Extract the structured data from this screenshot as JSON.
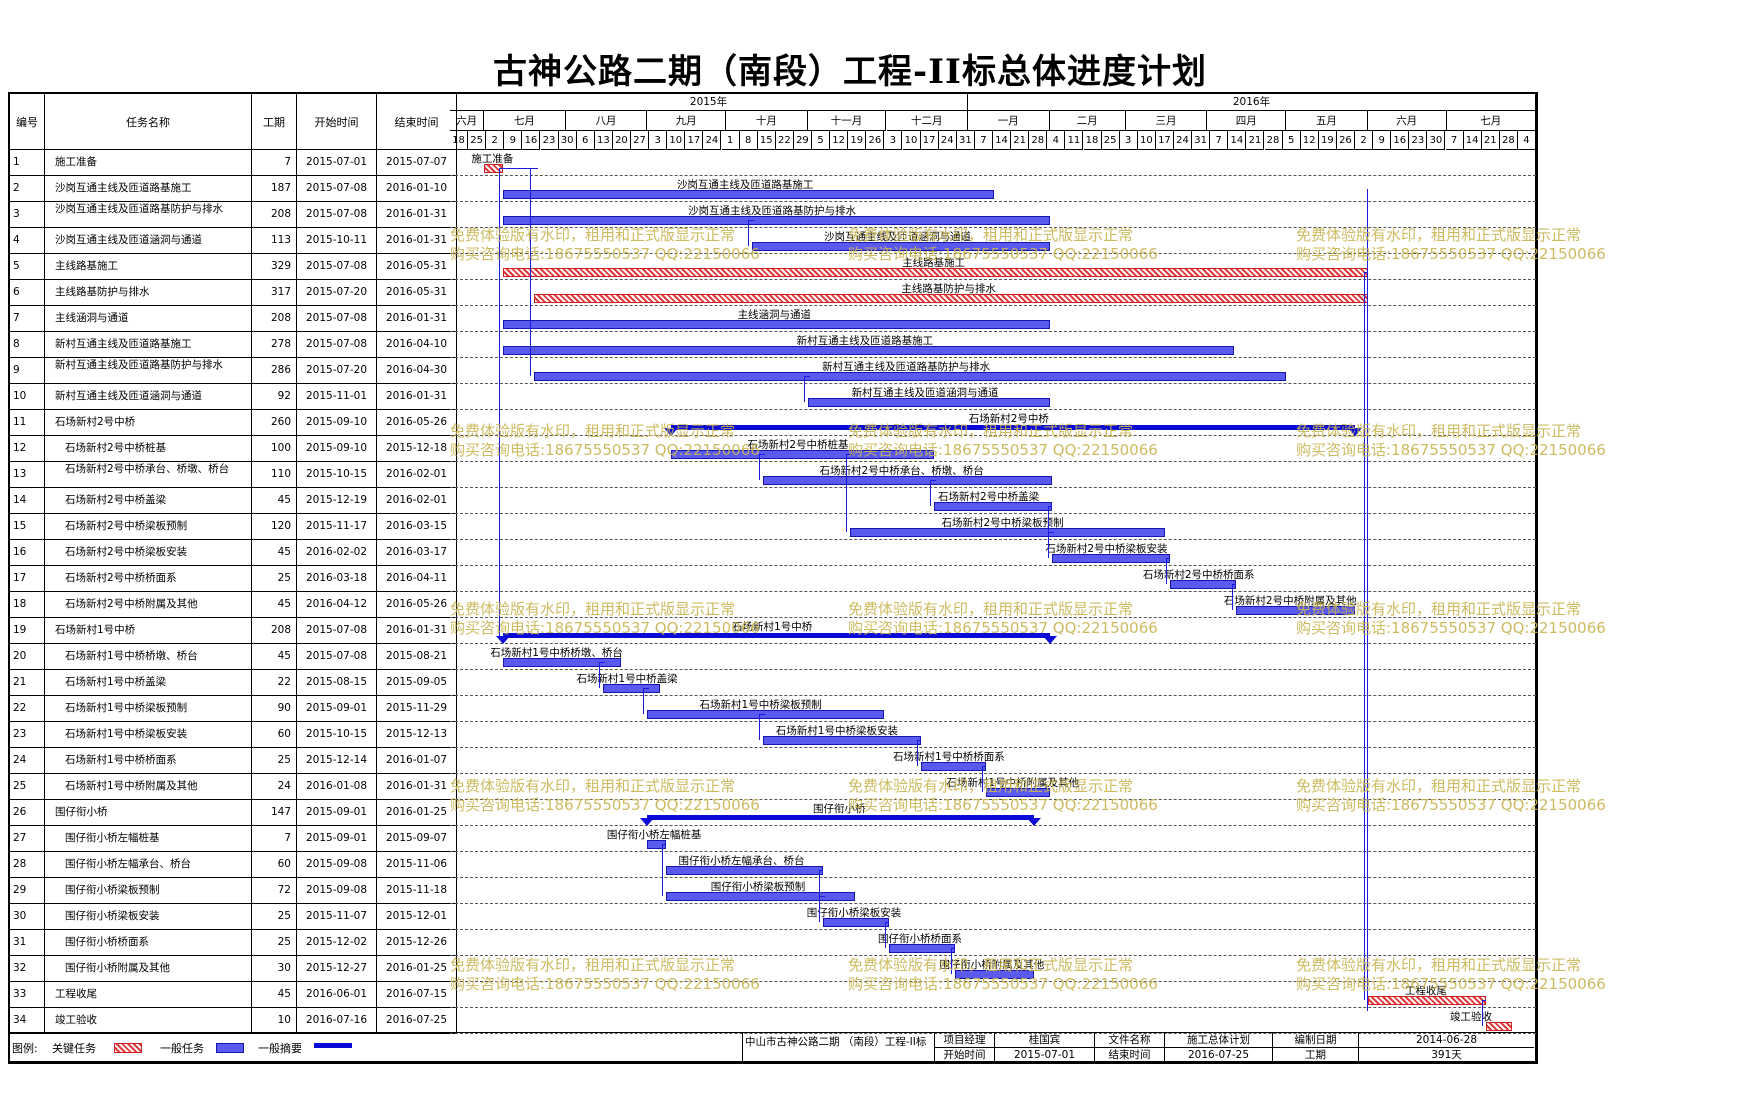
{
  "title": "古神公路二期（南段）工程-II标总体进度计划",
  "headers": {
    "id": "编号",
    "name": "任务名称",
    "dur": "工期",
    "start": "开始时间",
    "end": "结束时间"
  },
  "years": [
    {
      "label": "2015年"
    },
    {
      "label": "2016年"
    }
  ],
  "months": [
    "六月",
    "七月",
    "八月",
    "九月",
    "十月",
    "十一月",
    "十二月",
    "一月",
    "二月",
    "三月",
    "四月",
    "五月",
    "六月",
    "七月"
  ],
  "weeks": [
    "18",
    "25",
    "2",
    "9",
    "16",
    "23",
    "30",
    "6",
    "13",
    "20",
    "27",
    "3",
    "10",
    "17",
    "24",
    "1",
    "8",
    "15",
    "22",
    "29",
    "5",
    "12",
    "19",
    "26",
    "3",
    "10",
    "17",
    "24",
    "31",
    "7",
    "14",
    "21",
    "28",
    "4",
    "11",
    "18",
    "25",
    "3",
    "10",
    "17",
    "24",
    "31",
    "7",
    "14",
    "21",
    "28",
    "5",
    "12",
    "19",
    "26",
    "2",
    "9",
    "16",
    "23",
    "30",
    "7",
    "14",
    "21",
    "28",
    "4"
  ],
  "tasks": [
    {
      "id": "1",
      "name": "施工准备",
      "dur": "7",
      "start": "2015-07-01",
      "end": "2015-07-07",
      "type": "critical",
      "label": "施工准备"
    },
    {
      "id": "2",
      "name": "沙岗互通主线及匝道路基施工",
      "dur": "187",
      "start": "2015-07-08",
      "end": "2016-01-10",
      "type": "normal",
      "label": "沙岗互通主线及匝道路基施工"
    },
    {
      "id": "3",
      "name": "沙岗互通主线及匝道路基防护与排水",
      "dur": "208",
      "start": "2015-07-08",
      "end": "2016-01-31",
      "type": "normal",
      "label": "沙岗互通主线及匝道路基防护与排水"
    },
    {
      "id": "4",
      "name": "沙岗互通主线及匝道涵洞与通道",
      "dur": "113",
      "start": "2015-10-11",
      "end": "2016-01-31",
      "type": "normal",
      "label": "沙岗互通主线及匝道涵洞与通道"
    },
    {
      "id": "5",
      "name": "主线路基施工",
      "dur": "329",
      "start": "2015-07-08",
      "end": "2016-05-31",
      "type": "critical",
      "label": "主线路基施工"
    },
    {
      "id": "6",
      "name": "主线路基防护与排水",
      "dur": "317",
      "start": "2015-07-20",
      "end": "2016-05-31",
      "type": "critical",
      "label": "主线路基防护与排水"
    },
    {
      "id": "7",
      "name": "主线涵洞与通道",
      "dur": "208",
      "start": "2015-07-08",
      "end": "2016-01-31",
      "type": "normal",
      "label": "主线涵洞与通道"
    },
    {
      "id": "8",
      "name": "新村互通主线及匝道路基施工",
      "dur": "278",
      "start": "2015-07-08",
      "end": "2016-04-10",
      "type": "normal",
      "label": "新村互通主线及匝道路基施工"
    },
    {
      "id": "9",
      "name": "新村互通主线及匝道路基防护与排水",
      "dur": "286",
      "start": "2015-07-20",
      "end": "2016-04-30",
      "type": "normal",
      "label": "新村互通主线及匝道路基防护与排水"
    },
    {
      "id": "10",
      "name": "新村互通主线及匝道涵洞与通道",
      "dur": "92",
      "start": "2015-11-01",
      "end": "2016-01-31",
      "type": "normal",
      "label": "新村互通主线及匝道涵洞与通道"
    },
    {
      "id": "11",
      "name": "石场新村2号中桥",
      "dur": "260",
      "start": "2015-09-10",
      "end": "2016-05-26",
      "type": "summary",
      "label": "石场新村2号中桥"
    },
    {
      "id": "12",
      "name": "石场新村2号中桥桩基",
      "dur": "100",
      "start": "2015-09-10",
      "end": "2015-12-18",
      "type": "normal",
      "label": "石场新村2号中桥桩基"
    },
    {
      "id": "13",
      "name": "石场新村2号中桥承台、桥墩、桥台",
      "dur": "110",
      "start": "2015-10-15",
      "end": "2016-02-01",
      "type": "normal",
      "label": "石场新村2号中桥承台、桥墩、桥台"
    },
    {
      "id": "14",
      "name": "石场新村2号中桥盖梁",
      "dur": "45",
      "start": "2015-12-19",
      "end": "2016-02-01",
      "type": "normal",
      "label": "石场新村2号中桥盖梁"
    },
    {
      "id": "15",
      "name": "石场新村2号中桥梁板预制",
      "dur": "120",
      "start": "2015-11-17",
      "end": "2016-03-15",
      "type": "normal",
      "label": "石场新村2号中桥梁板预制"
    },
    {
      "id": "16",
      "name": "石场新村2号中桥梁板安装",
      "dur": "45",
      "start": "2016-02-02",
      "end": "2016-03-17",
      "type": "normal",
      "label": "石场新村2号中桥梁板安装"
    },
    {
      "id": "17",
      "name": "石场新村2号中桥桥面系",
      "dur": "25",
      "start": "2016-03-18",
      "end": "2016-04-11",
      "type": "normal",
      "label": "石场新村2号中桥桥面系"
    },
    {
      "id": "18",
      "name": "石场新村2号中桥附属及其他",
      "dur": "45",
      "start": "2016-04-12",
      "end": "2016-05-26",
      "type": "normal",
      "label": "石场新村2号中桥附属及其他"
    },
    {
      "id": "19",
      "name": "石场新村1号中桥",
      "dur": "208",
      "start": "2015-07-08",
      "end": "2016-01-31",
      "type": "summary",
      "label": "石场新村1号中桥"
    },
    {
      "id": "20",
      "name": "石场新村1号中桥桥墩、桥台",
      "dur": "45",
      "start": "2015-07-08",
      "end": "2015-08-21",
      "type": "normal",
      "label": "石场新村1号中桥桥墩、桥台"
    },
    {
      "id": "21",
      "name": "石场新村1号中桥盖梁",
      "dur": "22",
      "start": "2015-08-15",
      "end": "2015-09-05",
      "type": "normal",
      "label": "石场新村1号中桥盖梁"
    },
    {
      "id": "22",
      "name": "石场新村1号中桥梁板预制",
      "dur": "90",
      "start": "2015-09-01",
      "end": "2015-11-29",
      "type": "normal",
      "label": "石场新村1号中桥梁板预制"
    },
    {
      "id": "23",
      "name": "石场新村1号中桥梁板安装",
      "dur": "60",
      "start": "2015-10-15",
      "end": "2015-12-13",
      "type": "normal",
      "label": "石场新村1号中桥梁板安装"
    },
    {
      "id": "24",
      "name": "石场新村1号中桥桥面系",
      "dur": "25",
      "start": "2015-12-14",
      "end": "2016-01-07",
      "type": "normal",
      "label": "石场新村1号中桥桥面系"
    },
    {
      "id": "25",
      "name": "石场新村1号中桥附属及其他",
      "dur": "24",
      "start": "2016-01-08",
      "end": "2016-01-31",
      "type": "normal",
      "label": "石场新村1号中桥附属及其他"
    },
    {
      "id": "26",
      "name": "围仔衔小桥",
      "dur": "147",
      "start": "2015-09-01",
      "end": "2016-01-25",
      "type": "summary",
      "label": "围仔衔小桥"
    },
    {
      "id": "27",
      "name": "围仔衔小桥左幅桩基",
      "dur": "7",
      "start": "2015-09-01",
      "end": "2015-09-07",
      "type": "normal",
      "label": "围仔衔小桥左幅桩基"
    },
    {
      "id": "28",
      "name": "围仔衔小桥左幅承台、桥台",
      "dur": "60",
      "start": "2015-09-08",
      "end": "2015-11-06",
      "type": "normal",
      "label": "围仔衔小桥左幅承台、桥台"
    },
    {
      "id": "29",
      "name": "围仔衔小桥梁板预制",
      "dur": "72",
      "start": "2015-09-08",
      "end": "2015-11-18",
      "type": "normal",
      "label": "围仔衔小桥梁板预制"
    },
    {
      "id": "30",
      "name": "围仔衔小桥梁板安装",
      "dur": "25",
      "start": "2015-11-07",
      "end": "2015-12-01",
      "type": "normal",
      "label": "围仔衔小桥梁板安装"
    },
    {
      "id": "31",
      "name": "围仔衔小桥桥面系",
      "dur": "25",
      "start": "2015-12-02",
      "end": "2015-12-26",
      "type": "normal",
      "label": "围仔衔小桥桥面系"
    },
    {
      "id": "32",
      "name": "围仔衔小桥附属及其他",
      "dur": "30",
      "start": "2015-12-27",
      "end": "2016-01-25",
      "type": "normal",
      "label": "围仔衔小桥附属及其他"
    },
    {
      "id": "33",
      "name": "工程收尾",
      "dur": "45",
      "start": "2016-06-01",
      "end": "2016-07-15",
      "type": "critical",
      "label": "工程收尾"
    },
    {
      "id": "34",
      "name": "竣工验收",
      "dur": "10",
      "start": "2016-07-16",
      "end": "2016-07-25",
      "type": "critical",
      "label": "竣工验收"
    }
  ],
  "legend": {
    "title": "图例:",
    "critical": "关键任务",
    "normal": "一般任务",
    "summary": "一般摘要"
  },
  "info": {
    "project_name": "中山市古神公路二期 （南段）工程-II标",
    "manager_label": "项目经理",
    "manager": "桂国宾",
    "doc_label": "文件名称",
    "doc": "施工总体计划",
    "date_label": "编制日期",
    "date": "2014-06-28",
    "start_label": "开始时间",
    "start": "2015-07-01",
    "end_label": "结束时间",
    "end": "2016-07-25",
    "dur_label": "工期",
    "dur": "391天"
  },
  "watermark": {
    "line1": "免费体验版有水印，租用和正式版显示正常",
    "line2": "购买咨询电话:18675550537 QQ:22150066"
  },
  "colors": {
    "summary": "#0b0bd8",
    "normal": "#5a5af0",
    "critical": "#e23a3a",
    "watermark": "#c8b450"
  }
}
